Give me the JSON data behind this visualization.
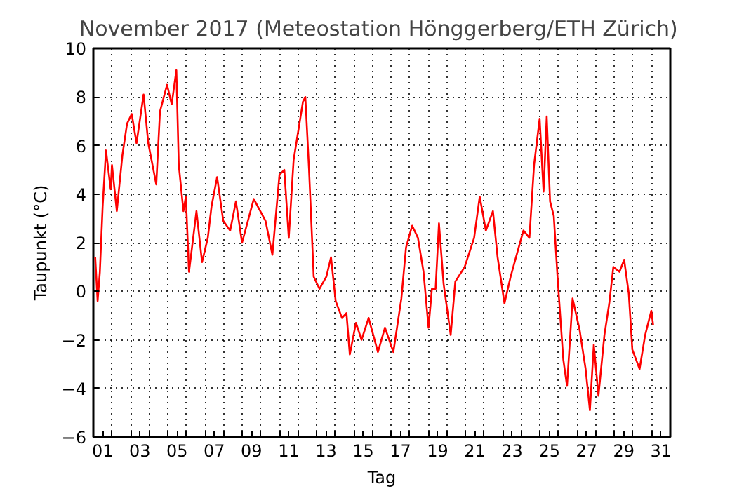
{
  "chart_data": {
    "type": "line",
    "title": "November 2017  (Meteostation Hönggerberg/ETH Zürich)",
    "xlabel": "Tag",
    "ylabel": "Taupunkt (°C)",
    "x": [
      1.1,
      1.23,
      1.35,
      1.5,
      1.68,
      1.93,
      2.0,
      2.26,
      2.56,
      2.81,
      3.06,
      3.32,
      3.7,
      3.95,
      4.38,
      4.58,
      4.96,
      5.21,
      5.46,
      5.59,
      5.84,
      5.97,
      6.14,
      6.54,
      6.84,
      7.15,
      7.35,
      7.65,
      7.98,
      8.35,
      8.66,
      8.99,
      9.62,
      10.25,
      10.62,
      11.0,
      11.26,
      11.5,
      11.76,
      12.26,
      12.39,
      12.59,
      12.84,
      13.15,
      13.52,
      13.77,
      14.02,
      14.36,
      14.6,
      14.78,
      15.11,
      15.41,
      15.79,
      16.29,
      16.67,
      17.12,
      17.55,
      17.8,
      18.13,
      18.44,
      18.74,
      19.01,
      19.19,
      19.39,
      19.57,
      19.82,
      20.2,
      20.45,
      20.95,
      21.46,
      21.76,
      22.09,
      22.47,
      22.72,
      23.09,
      23.42,
      23.78,
      24.11,
      24.43,
      24.68,
      24.98,
      25.19,
      25.36,
      25.54,
      25.74,
      25.94,
      26.25,
      26.45,
      26.75,
      27.13,
      27.45,
      27.68,
      27.89,
      28.14,
      28.46,
      28.72,
      28.94,
      29.27,
      29.52,
      29.77,
      29.96,
      30.35,
      30.65,
      30.98,
      31.08
    ],
    "series": [
      {
        "color": "#ff0000",
        "values": [
          1.4,
          -0.4,
          0.8,
          3.5,
          5.8,
          4.2,
          5.2,
          3.3,
          5.6,
          6.9,
          7.3,
          6.1,
          8.1,
          6.1,
          4.4,
          7.4,
          8.5,
          7.7,
          9.1,
          5.2,
          3.3,
          3.9,
          0.8,
          3.3,
          1.2,
          2.2,
          3.5,
          4.7,
          2.9,
          2.5,
          3.7,
          2.0,
          3.8,
          2.9,
          1.5,
          4.8,
          5.0,
          2.2,
          5.4,
          7.8,
          8.0,
          5.0,
          0.6,
          0.1,
          0.6,
          1.4,
          -0.4,
          -1.1,
          -0.9,
          -2.6,
          -1.3,
          -2.0,
          -1.1,
          -2.5,
          -1.5,
          -2.5,
          -0.3,
          1.8,
          2.7,
          2.2,
          0.8,
          -1.5,
          0.1,
          0.1,
          2.8,
          0.3,
          -1.8,
          0.4,
          1.0,
          2.2,
          3.9,
          2.5,
          3.3,
          1.4,
          -0.5,
          0.6,
          1.6,
          2.5,
          2.2,
          5.2,
          7.1,
          4.1,
          7.2,
          3.7,
          3.1,
          0.6,
          -2.8,
          -3.9,
          -0.3,
          -1.6,
          -3.2,
          -4.9,
          -2.2,
          -4.3,
          -1.8,
          -0.5,
          1.0,
          0.8,
          1.3,
          -0.1,
          -2.4,
          -3.2,
          -1.8,
          -0.8,
          -1.4
        ]
      }
    ],
    "xlim": [
      1,
      32
    ],
    "ylim": [
      -6,
      10
    ],
    "xticks": [
      {
        "value": 1.5,
        "label": "01"
      },
      {
        "value": 3.5,
        "label": "03"
      },
      {
        "value": 5.5,
        "label": "05"
      },
      {
        "value": 7.5,
        "label": "07"
      },
      {
        "value": 9.5,
        "label": "09"
      },
      {
        "value": 11.5,
        "label": "11"
      },
      {
        "value": 13.5,
        "label": "13"
      },
      {
        "value": 15.5,
        "label": "15"
      },
      {
        "value": 17.5,
        "label": "17"
      },
      {
        "value": 19.5,
        "label": "19"
      },
      {
        "value": 21.5,
        "label": "21"
      },
      {
        "value": 23.5,
        "label": "23"
      },
      {
        "value": 25.5,
        "label": "25"
      },
      {
        "value": 27.5,
        "label": "27"
      },
      {
        "value": 29.5,
        "label": "29"
      },
      {
        "value": 31.5,
        "label": "31"
      },
      {
        "value": 2,
        "label": null
      },
      {
        "value": 3,
        "label": null
      },
      {
        "value": 4,
        "label": null
      },
      {
        "value": 5,
        "label": null
      },
      {
        "value": 6,
        "label": null
      },
      {
        "value": 7,
        "label": null
      },
      {
        "value": 8,
        "label": null
      },
      {
        "value": 9,
        "label": null
      },
      {
        "value": 10,
        "label": null
      },
      {
        "value": 11,
        "label": null
      },
      {
        "value": 12,
        "label": null
      },
      {
        "value": 13,
        "label": null
      },
      {
        "value": 14,
        "label": null
      },
      {
        "value": 15,
        "label": null
      },
      {
        "value": 16,
        "label": null
      },
      {
        "value": 17,
        "label": null
      },
      {
        "value": 18,
        "label": null
      },
      {
        "value": 19,
        "label": null
      },
      {
        "value": 20,
        "label": null
      },
      {
        "value": 21,
        "label": null
      },
      {
        "value": 22,
        "label": null
      },
      {
        "value": 23,
        "label": null
      },
      {
        "value": 24,
        "label": null
      },
      {
        "value": 25,
        "label": null
      },
      {
        "value": 26,
        "label": null
      },
      {
        "value": 27,
        "label": null
      },
      {
        "value": 28,
        "label": null
      },
      {
        "value": 29,
        "label": null
      },
      {
        "value": 30,
        "label": null
      },
      {
        "value": 31,
        "label": null
      }
    ],
    "yticks": [
      -6,
      -4,
      -2,
      0,
      2,
      4,
      6,
      8,
      10
    ],
    "grid": true,
    "line_style": "solid",
    "marker": "none"
  }
}
